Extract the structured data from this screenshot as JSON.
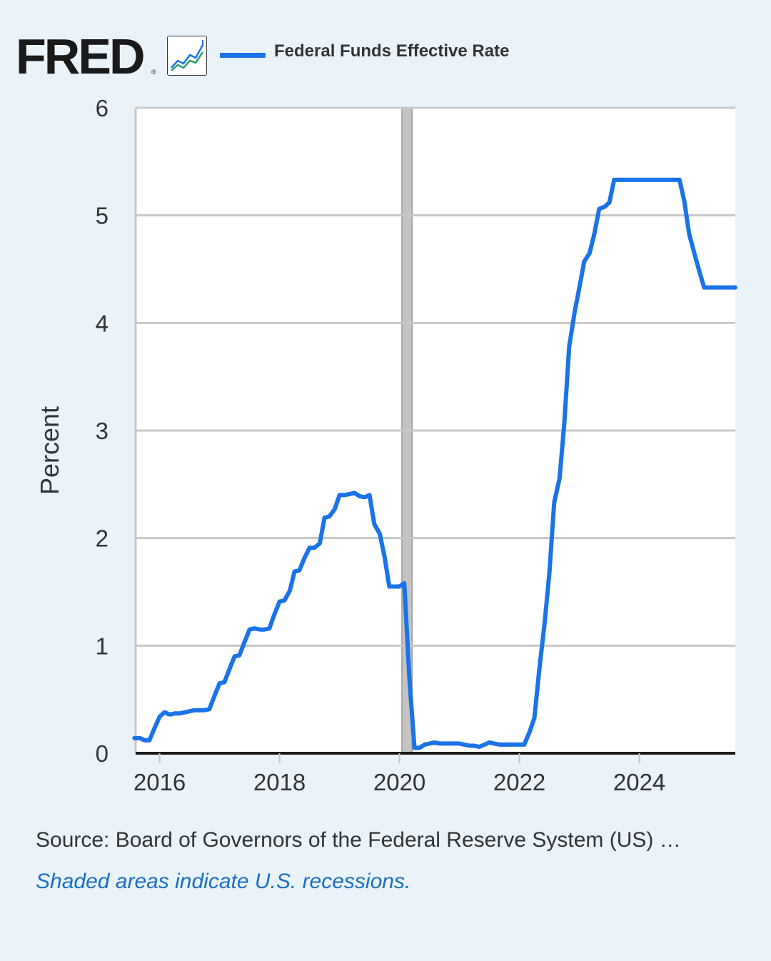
{
  "header": {
    "logo_text": "FRED",
    "logo_mark": "®",
    "logo_icon": "line-chart-icon"
  },
  "legend": {
    "label": "Federal Funds Effective Rate",
    "color": "#1a73e8"
  },
  "footer": {
    "source": "Source: Board of Governors of the Federal Reserve System (US) …",
    "recession_note": "Shaded areas indicate U.S. recessions."
  },
  "chart_data": {
    "type": "line",
    "title": "",
    "xlabel": "",
    "ylabel": "Percent",
    "xlim": [
      2015.6,
      2025.6
    ],
    "ylim": [
      0,
      6
    ],
    "x_ticks": [
      2016,
      2018,
      2020,
      2022,
      2024
    ],
    "x_tick_labels": [
      "2016",
      "2018",
      "2020",
      "2022",
      "2024"
    ],
    "y_ticks": [
      0,
      1,
      2,
      3,
      4,
      5,
      6
    ],
    "y_tick_labels": [
      "0",
      "1",
      "2",
      "3",
      "4",
      "5",
      "6"
    ],
    "grid": true,
    "recessions": [
      {
        "start": 2020.04,
        "end": 2020.21
      }
    ],
    "colors": {
      "line": "#1a73e8",
      "grid": "#c8c8c8",
      "recession": "#c4c4c4",
      "axis": "#1a1a1a",
      "plot_bg": "#ffffff"
    },
    "series": [
      {
        "name": "Federal Funds Effective Rate",
        "x": [
          2015.58,
          2015.67,
          2015.75,
          2015.83,
          2015.92,
          2016.0,
          2016.08,
          2016.17,
          2016.25,
          2016.33,
          2016.42,
          2016.5,
          2016.58,
          2016.67,
          2016.75,
          2016.83,
          2016.92,
          2017.0,
          2017.08,
          2017.17,
          2017.25,
          2017.33,
          2017.42,
          2017.5,
          2017.58,
          2017.67,
          2017.75,
          2017.83,
          2017.92,
          2018.0,
          2018.08,
          2018.17,
          2018.25,
          2018.33,
          2018.42,
          2018.5,
          2018.58,
          2018.67,
          2018.75,
          2018.83,
          2018.92,
          2019.0,
          2019.08,
          2019.17,
          2019.25,
          2019.33,
          2019.42,
          2019.5,
          2019.58,
          2019.67,
          2019.75,
          2019.83,
          2019.92,
          2020.0,
          2020.08,
          2020.17,
          2020.25,
          2020.33,
          2020.42,
          2020.5,
          2020.58,
          2020.67,
          2020.75,
          2020.83,
          2020.92,
          2021.0,
          2021.08,
          2021.17,
          2021.25,
          2021.33,
          2021.42,
          2021.5,
          2021.58,
          2021.67,
          2021.75,
          2021.83,
          2021.92,
          2022.0,
          2022.08,
          2022.17,
          2022.25,
          2022.33,
          2022.42,
          2022.5,
          2022.58,
          2022.67,
          2022.75,
          2022.83,
          2022.92,
          2023.0,
          2023.08,
          2023.17,
          2023.25,
          2023.33,
          2023.42,
          2023.5,
          2023.58,
          2023.67,
          2023.75,
          2023.83,
          2023.92,
          2024.0,
          2024.08,
          2024.17,
          2024.25,
          2024.33,
          2024.42,
          2024.5,
          2024.58,
          2024.67,
          2024.75,
          2024.83,
          2024.92,
          2025.0,
          2025.08,
          2025.17,
          2025.25,
          2025.33,
          2025.42,
          2025.5,
          2025.58,
          2025.6
        ],
        "values": [
          0.14,
          0.14,
          0.12,
          0.12,
          0.24,
          0.34,
          0.38,
          0.36,
          0.37,
          0.37,
          0.38,
          0.39,
          0.4,
          0.4,
          0.4,
          0.41,
          0.54,
          0.65,
          0.66,
          0.79,
          0.9,
          0.91,
          1.04,
          1.15,
          1.16,
          1.15,
          1.15,
          1.16,
          1.3,
          1.41,
          1.42,
          1.51,
          1.69,
          1.7,
          1.82,
          1.91,
          1.91,
          1.95,
          2.19,
          2.2,
          2.27,
          2.4,
          2.4,
          2.41,
          2.42,
          2.39,
          2.38,
          2.4,
          2.13,
          2.04,
          1.83,
          1.55,
          1.55,
          1.55,
          1.58,
          0.65,
          0.05,
          0.05,
          0.08,
          0.09,
          0.1,
          0.09,
          0.09,
          0.09,
          0.09,
          0.09,
          0.08,
          0.07,
          0.07,
          0.06,
          0.08,
          0.1,
          0.09,
          0.08,
          0.08,
          0.08,
          0.08,
          0.08,
          0.08,
          0.2,
          0.33,
          0.77,
          1.21,
          1.68,
          2.33,
          2.56,
          3.08,
          3.78,
          4.1,
          4.33,
          4.57,
          4.65,
          4.83,
          5.06,
          5.08,
          5.12,
          5.33,
          5.33,
          5.33,
          5.33,
          5.33,
          5.33,
          5.33,
          5.33,
          5.33,
          5.33,
          5.33,
          5.33,
          5.33,
          5.33,
          5.13,
          4.83,
          4.64,
          4.48,
          4.33,
          4.33,
          4.33,
          4.33,
          4.33,
          4.33,
          4.33,
          4.33
        ]
      }
    ]
  }
}
